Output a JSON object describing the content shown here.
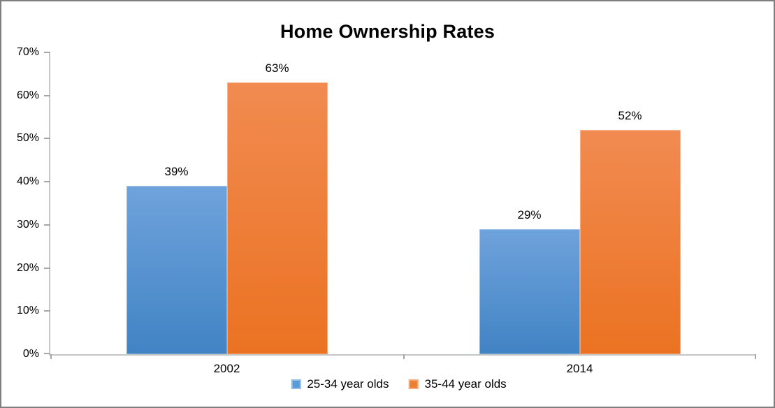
{
  "chart_data": {
    "type": "bar",
    "title": "Home Ownership Rates",
    "categories": [
      "2002",
      "2014"
    ],
    "series": [
      {
        "name": "25-34 year olds",
        "values": [
          39,
          29
        ],
        "labels": [
          "39%",
          "29%"
        ],
        "color": "#5b9bd5",
        "gradient_top": "#6fa3dc",
        "gradient_bottom": "#4183c4"
      },
      {
        "name": "35-44 year olds",
        "values": [
          63,
          52
        ],
        "labels": [
          "63%",
          "52%"
        ],
        "color": "#ed7d31",
        "gradient_top": "#f18b51",
        "gradient_bottom": "#eb7222"
      }
    ],
    "ylim": [
      0,
      70
    ],
    "yticks": [
      "0%",
      "10%",
      "20%",
      "30%",
      "40%",
      "50%",
      "60%",
      "70%"
    ],
    "xlabel": "",
    "ylabel": "",
    "grid": false,
    "legend_position": "bottom-center",
    "bar_value_suffix": "%"
  }
}
